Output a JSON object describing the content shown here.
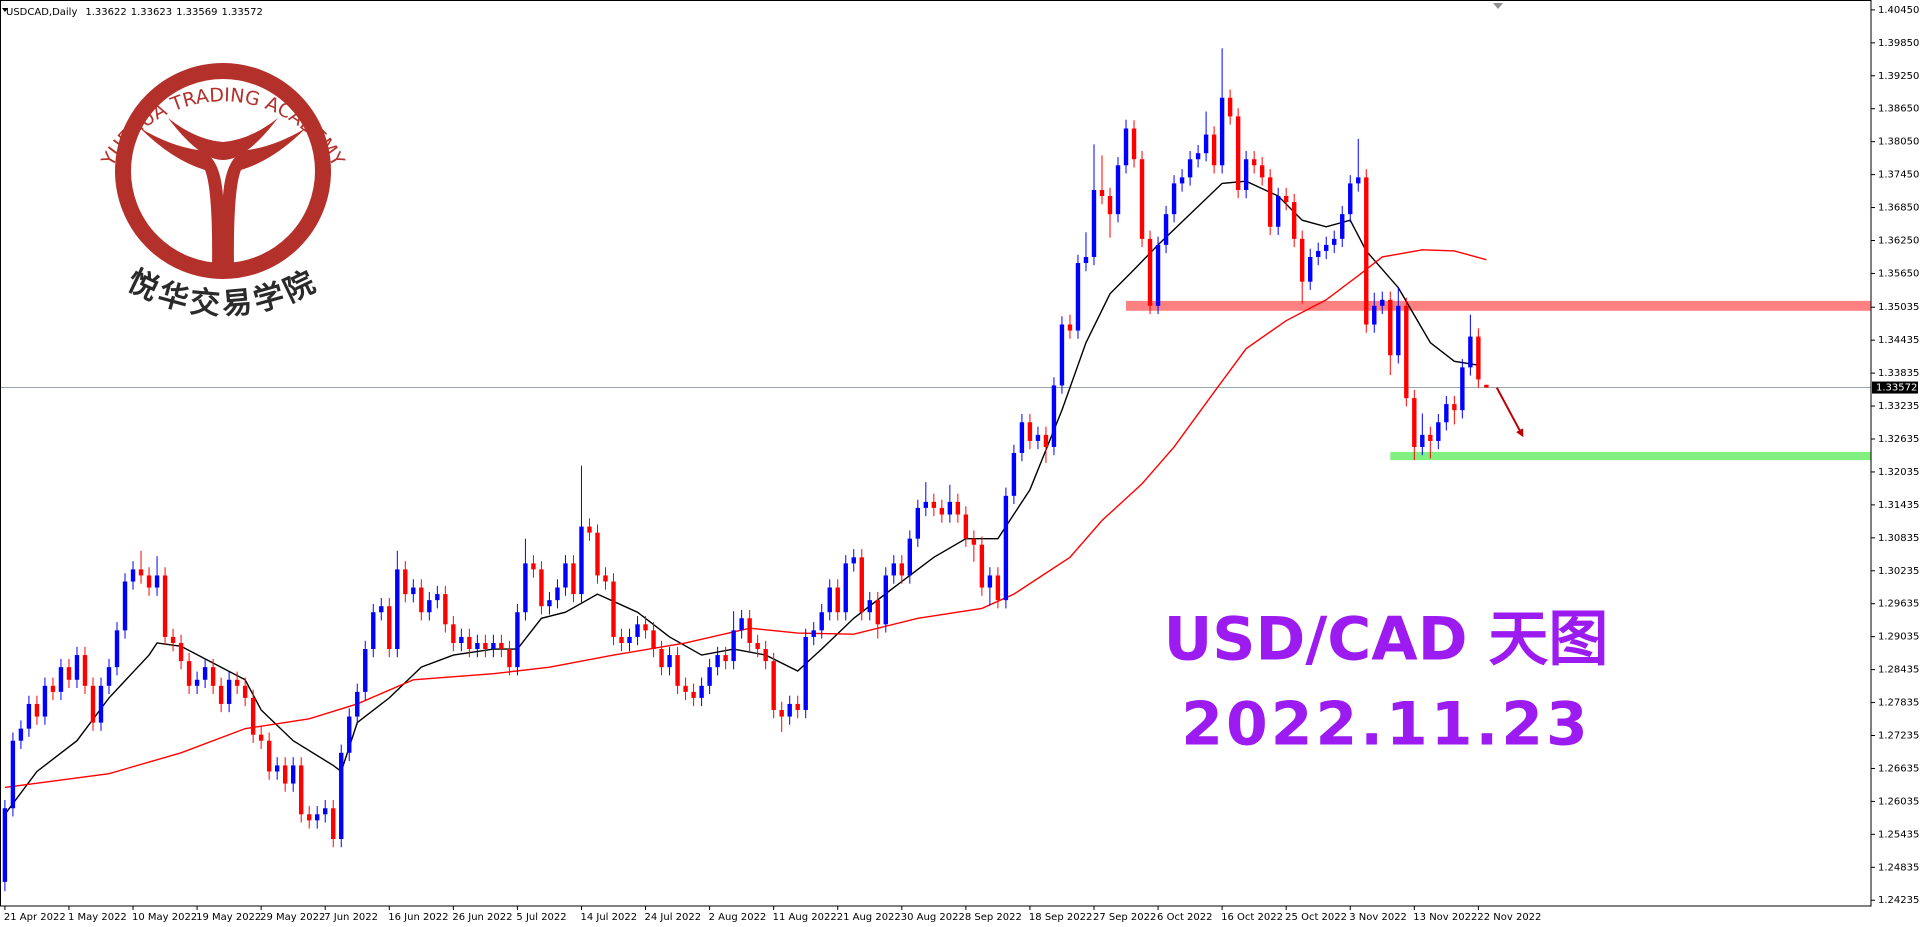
{
  "chart_data": {
    "type": "candlestick",
    "symbol": "USDCAD,Daily",
    "up_color": "#0000ff",
    "down_color": "#ff0000",
    "grid": false,
    "ylim": [
      1.2413,
      1.4063
    ],
    "yticks": [
      {
        "value": 1.4045,
        "label": "1.40450"
      },
      {
        "value": 1.3985,
        "label": "1.39850"
      },
      {
        "value": 1.3925,
        "label": "1.39250"
      },
      {
        "value": 1.3865,
        "label": "1.38650"
      },
      {
        "value": 1.3805,
        "label": "1.38050"
      },
      {
        "value": 1.3745,
        "label": "1.37450"
      },
      {
        "value": 1.3685,
        "label": "1.36850"
      },
      {
        "value": 1.3625,
        "label": "1.36250"
      },
      {
        "value": 1.3565,
        "label": "1.35650"
      },
      1.35035,
      1.34435,
      1.33835,
      1.33235,
      1.32635,
      1.32035,
      1.31435,
      1.30835,
      1.30235,
      1.29635,
      1.29035,
      1.28435,
      1.27835,
      1.27235,
      1.26635,
      1.26035,
      1.25435,
      1.24835,
      1.24235
    ],
    "last_price": 1.33572,
    "categories": [
      "21 Apr 2022",
      null,
      null,
      null,
      null,
      null,
      null,
      null,
      "1 May 2022",
      null,
      null,
      null,
      null,
      null,
      null,
      null,
      "10 May 2022",
      null,
      null,
      null,
      null,
      null,
      null,
      null,
      "19 May 2022",
      null,
      null,
      null,
      null,
      null,
      null,
      null,
      "29 May 2022",
      null,
      null,
      null,
      null,
      null,
      null,
      null,
      "7 Jun 2022",
      null,
      null,
      null,
      null,
      null,
      null,
      null,
      "16 Jun 2022",
      null,
      null,
      null,
      null,
      null,
      null,
      null,
      "26 Jun 2022",
      null,
      null,
      null,
      null,
      null,
      null,
      null,
      "5 Jul 2022",
      null,
      null,
      null,
      null,
      null,
      null,
      null,
      "14 Jul 2022",
      null,
      null,
      null,
      null,
      null,
      null,
      null,
      "24 Jul 2022",
      null,
      null,
      null,
      null,
      null,
      null,
      null,
      "2 Aug 2022",
      null,
      null,
      null,
      null,
      null,
      null,
      null,
      "11 Aug 2022",
      null,
      null,
      null,
      null,
      null,
      null,
      null,
      "21 Aug 2022",
      null,
      null,
      null,
      null,
      null,
      null,
      null,
      "30 Aug 2022",
      null,
      null,
      null,
      null,
      null,
      null,
      null,
      "8 Sep 2022",
      null,
      null,
      null,
      null,
      null,
      null,
      null,
      "18 Sep 2022",
      null,
      null,
      null,
      null,
      null,
      null,
      null,
      "27 Sep 2022",
      null,
      null,
      null,
      null,
      null,
      null,
      null,
      "6 Oct 2022",
      null,
      null,
      null,
      null,
      null,
      null,
      null,
      "16 Oct 2022",
      null,
      null,
      null,
      null,
      null,
      null,
      null,
      "25 Oct 2022",
      null,
      null,
      null,
      null,
      null,
      null,
      null,
      "3 Nov 2022",
      null,
      null,
      null,
      null,
      null,
      null,
      null,
      "13 Nov 2022",
      null,
      null,
      null,
      null,
      null,
      null,
      null,
      "22 Nov 2022",
      null
    ],
    "open": [
      1.2457,
      1.2591,
      1.2714,
      1.2736,
      1.2781,
      1.2758,
      1.2814,
      1.2803,
      1.2848,
      1.2825,
      1.287,
      1.2814,
      1.2747,
      1.2814,
      1.2848,
      1.2915,
      1.3004,
      1.3026,
      1.3015,
      1.2993,
      1.3015,
      1.2903,
      1.2892,
      1.2859,
      1.2814,
      1.2825,
      1.2848,
      1.2814,
      1.2781,
      1.2825,
      1.2814,
      1.2792,
      1.2725,
      1.2714,
      1.2658,
      1.2669,
      1.2636,
      1.2669,
      1.258,
      1.2569,
      1.258,
      1.2591,
      1.2535,
      1.2692,
      1.2758,
      1.2803,
      1.2881,
      1.2948,
      1.2959,
      1.2881,
      1.3026,
      1.2981,
      1.2993,
      1.2948,
      1.297,
      1.2981,
      1.2926,
      1.2892,
      1.2903,
      1.2881,
      1.2892,
      1.2881,
      1.2892,
      1.2881,
      1.2848,
      1.2948,
      1.3037,
      1.3026,
      1.2959,
      1.297,
      1.2993,
      1.3037,
      1.2981,
      1.3104,
      1.3093,
      1.3015,
      1.3004,
      1.2903,
      1.2892,
      1.2903,
      1.2926,
      1.2915,
      1.2881,
      1.2848,
      1.287,
      1.2814,
      1.2803,
      1.2792,
      1.2814,
      1.2848,
      1.287,
      1.2859,
      1.2915,
      1.2937,
      1.2892,
      1.2881,
      1.2859,
      1.277,
      1.2758,
      1.2781,
      1.277,
      1.2903,
      1.2915,
      1.2948,
      1.2993,
      1.2948,
      1.3037,
      1.3048,
      1.2948,
      1.297,
      1.2926,
      1.3015,
      1.3037,
      1.3015,
      1.3082,
      1.3138,
      1.3149,
      1.3138,
      1.3126,
      1.3149,
      1.3126,
      1.3082,
      1.3071,
      1.2993,
      1.3015,
      1.297,
      1.316,
      1.3238,
      1.3294,
      1.326,
      1.3271,
      1.3249,
      1.3361,
      1.3472,
      1.3461,
      1.3584,
      1.3595,
      1.3717,
      1.3706,
      1.3673,
      1.3762,
      1.3829,
      1.3773,
      1.3628,
      1.3506,
      1.3617,
      1.3673,
      1.3729,
      1.374,
      1.3773,
      1.3784,
      1.3818,
      1.3762,
      1.3885,
      1.3851,
      1.3717,
      1.3773,
      1.3762,
      1.374,
      1.365,
      1.3706,
      1.3695,
      1.3628,
      1.355,
      1.3595,
      1.3606,
      1.3617,
      1.3628,
      1.3673,
      1.3729,
      1.374,
      1.3472,
      1.3506,
      1.3517,
      1.3416,
      1.3506,
      1.3338,
      1.3249,
      1.3271,
      1.326,
      1.3294,
      1.3327,
      1.3316,
      1.3394,
      1.345,
      1.33622
    ],
    "high": [
      1.2606,
      1.2729,
      1.2751,
      1.2796,
      1.2796,
      1.2829,
      1.2829,
      1.2863,
      1.2863,
      1.2885,
      1.2885,
      1.2829,
      1.2829,
      1.2863,
      1.293,
      1.3019,
      1.3041,
      1.306,
      1.303,
      1.305,
      1.303,
      1.2918,
      1.2907,
      1.2874,
      1.284,
      1.2863,
      1.2863,
      1.2829,
      1.284,
      1.284,
      1.2829,
      1.2807,
      1.274,
      1.2729,
      1.2684,
      1.2684,
      1.2684,
      1.2684,
      1.2595,
      1.2595,
      1.2606,
      1.2606,
      1.2707,
      1.2773,
      1.2818,
      1.2896,
      1.2963,
      1.2974,
      1.2974,
      1.306,
      1.3041,
      1.3008,
      1.3008,
      1.2985,
      1.2996,
      1.2996,
      1.2941,
      1.2918,
      1.2918,
      1.2907,
      1.2907,
      1.2907,
      1.2907,
      1.2896,
      1.2963,
      1.3082,
      1.3052,
      1.3041,
      1.2985,
      1.3008,
      1.3052,
      1.3052,
      1.3215,
      1.3119,
      1.3108,
      1.303,
      1.3019,
      1.2918,
      1.2918,
      1.2941,
      1.2941,
      1.293,
      1.2896,
      1.2885,
      1.2885,
      1.2829,
      1.2818,
      1.2829,
      1.2863,
      1.2885,
      1.2885,
      1.295,
      1.2952,
      1.2952,
      1.2907,
      1.2896,
      1.2874,
      1.2785,
      1.2796,
      1.2796,
      1.2918,
      1.293,
      1.2963,
      1.3008,
      1.3008,
      1.3052,
      1.3063,
      1.3063,
      1.2985,
      1.2985,
      1.303,
      1.3052,
      1.3052,
      1.3097,
      1.3153,
      1.3185,
      1.3164,
      1.3153,
      1.318,
      1.3164,
      1.3141,
      1.3097,
      1.3086,
      1.303,
      1.303,
      1.3175,
      1.3253,
      1.3309,
      1.3309,
      1.3286,
      1.3286,
      1.3376,
      1.3487,
      1.349,
      1.3599,
      1.364,
      1.38,
      1.378,
      1.3721,
      1.3777,
      1.3845,
      1.3844,
      1.3788,
      1.3643,
      1.3632,
      1.3688,
      1.3744,
      1.3755,
      1.3788,
      1.3799,
      1.386,
      1.3833,
      1.3975,
      1.39,
      1.3866,
      1.3788,
      1.3788,
      1.3777,
      1.3755,
      1.3721,
      1.3721,
      1.371,
      1.3643,
      1.361,
      1.3621,
      1.3632,
      1.3643,
      1.3688,
      1.3744,
      1.381,
      1.3755,
      1.353,
      1.3532,
      1.3532,
      1.354,
      1.3521,
      1.3353,
      1.331,
      1.3286,
      1.3309,
      1.3342,
      1.3342,
      1.3409,
      1.349,
      1.3465,
      1.33623
    ],
    "low": [
      1.244,
      1.2576,
      1.2699,
      1.2721,
      1.2743,
      1.2743,
      1.2788,
      1.2788,
      1.281,
      1.281,
      1.2799,
      1.2732,
      1.2732,
      1.2799,
      1.2833,
      1.29,
      1.2989,
      1.3,
      1.2978,
      1.2978,
      1.2888,
      1.2877,
      1.2844,
      1.2799,
      1.2799,
      1.281,
      1.2799,
      1.2766,
      1.2766,
      1.2799,
      1.2777,
      1.271,
      1.2699,
      1.2643,
      1.2643,
      1.2621,
      1.2621,
      1.2565,
      1.2554,
      1.2554,
      1.2565,
      1.252,
      1.252,
      1.2677,
      1.2743,
      1.2788,
      1.2866,
      1.2933,
      1.2866,
      1.2866,
      1.2966,
      1.2966,
      1.2933,
      1.2933,
      1.2955,
      1.2911,
      1.2877,
      1.2877,
      1.2866,
      1.2866,
      1.2866,
      1.2866,
      1.2866,
      1.2833,
      1.2833,
      1.2933,
      1.3011,
      1.2944,
      1.2944,
      1.2955,
      1.2978,
      1.2966,
      1.2966,
      1.3078,
      1.3,
      1.2989,
      1.2888,
      1.2877,
      1.2877,
      1.2888,
      1.29,
      1.2866,
      1.2833,
      1.2833,
      1.2799,
      1.2788,
      1.2777,
      1.2777,
      1.2799,
      1.2833,
      1.2844,
      1.2844,
      1.29,
      1.2877,
      1.2866,
      1.2844,
      1.2755,
      1.273,
      1.2743,
      1.2755,
      1.2755,
      1.2888,
      1.29,
      1.2933,
      1.2933,
      1.2933,
      1.3022,
      1.2933,
      1.2933,
      1.29,
      1.2911,
      1.3,
      1.3,
      1.3,
      1.3067,
      1.3123,
      1.3123,
      1.3111,
      1.3111,
      1.3111,
      1.3067,
      1.304,
      1.2978,
      1.296,
      1.2955,
      1.2955,
      1.3145,
      1.3223,
      1.3245,
      1.3245,
      1.322,
      1.3234,
      1.3346,
      1.3446,
      1.3446,
      1.3569,
      1.358,
      1.3691,
      1.363,
      1.3658,
      1.3747,
      1.3758,
      1.3613,
      1.3491,
      1.3491,
      1.3602,
      1.3658,
      1.3714,
      1.3725,
      1.3758,
      1.3769,
      1.3747,
      1.3747,
      1.3836,
      1.3702,
      1.3702,
      1.3747,
      1.3725,
      1.3635,
      1.3635,
      1.368,
      1.3613,
      1.351,
      1.3535,
      1.358,
      1.3591,
      1.3602,
      1.3613,
      1.3658,
      1.3714,
      1.3457,
      1.3457,
      1.3491,
      1.338,
      1.3401,
      1.3323,
      1.3225,
      1.3234,
      1.3228,
      1.3245,
      1.3279,
      1.329,
      1.3301,
      1.3379,
      1.3357,
      1.33569
    ],
    "close": [
      1.2591,
      1.2714,
      1.2736,
      1.2781,
      1.2758,
      1.2814,
      1.2803,
      1.2848,
      1.2825,
      1.287,
      1.2814,
      1.2747,
      1.2814,
      1.2848,
      1.2915,
      1.3004,
      1.3026,
      1.3015,
      1.2993,
      1.3015,
      1.2903,
      1.2892,
      1.2859,
      1.2814,
      1.2825,
      1.2848,
      1.2814,
      1.2781,
      1.2825,
      1.2814,
      1.2792,
      1.2725,
      1.2714,
      1.2658,
      1.2669,
      1.2636,
      1.2669,
      1.258,
      1.2569,
      1.258,
      1.2591,
      1.2535,
      1.2692,
      1.2758,
      1.2803,
      1.2881,
      1.2948,
      1.2959,
      1.2881,
      1.3026,
      1.2981,
      1.2993,
      1.2948,
      1.297,
      1.2981,
      1.2926,
      1.2892,
      1.2903,
      1.2881,
      1.2892,
      1.2881,
      1.2892,
      1.2881,
      1.2848,
      1.2948,
      1.3037,
      1.3026,
      1.2959,
      1.297,
      1.2993,
      1.3037,
      1.2981,
      1.3104,
      1.3093,
      1.3015,
      1.3004,
      1.2903,
      1.2892,
      1.2903,
      1.2926,
      1.2915,
      1.2881,
      1.2848,
      1.287,
      1.2814,
      1.2803,
      1.2792,
      1.2814,
      1.2848,
      1.287,
      1.2859,
      1.2915,
      1.2937,
      1.2892,
      1.2881,
      1.2859,
      1.277,
      1.2758,
      1.2781,
      1.277,
      1.2903,
      1.2915,
      1.2948,
      1.2993,
      1.2948,
      1.3037,
      1.3048,
      1.2948,
      1.297,
      1.2926,
      1.3015,
      1.3037,
      1.3015,
      1.3082,
      1.3138,
      1.3149,
      1.3138,
      1.3126,
      1.3149,
      1.3126,
      1.3082,
      1.3071,
      1.2993,
      1.3015,
      1.297,
      1.316,
      1.3238,
      1.3294,
      1.326,
      1.3271,
      1.3249,
      1.3361,
      1.3472,
      1.3461,
      1.3584,
      1.3595,
      1.3717,
      1.3706,
      1.3673,
      1.3762,
      1.3829,
      1.3773,
      1.3628,
      1.3506,
      1.3617,
      1.3673,
      1.3729,
      1.374,
      1.3773,
      1.3784,
      1.3818,
      1.3762,
      1.3885,
      1.3851,
      1.3717,
      1.3773,
      1.3762,
      1.374,
      1.365,
      1.3706,
      1.3695,
      1.3628,
      1.355,
      1.3595,
      1.3606,
      1.3617,
      1.3628,
      1.3673,
      1.3729,
      1.374,
      1.3472,
      1.3506,
      1.3517,
      1.3416,
      1.3506,
      1.3338,
      1.3249,
      1.3271,
      1.326,
      1.3294,
      1.3327,
      1.3316,
      1.3394,
      1.345,
      1.3372,
      1.33572
    ],
    "moving_averages": [
      {
        "color": "#000000",
        "x": [
          0,
          4,
          9,
          13,
          18,
          19,
          22,
          25,
          30,
          32,
          36,
          41,
          42,
          44,
          48,
          52,
          56,
          61,
          64,
          67,
          70,
          74,
          79,
          83,
          87,
          91,
          95,
          99,
          102,
          106,
          111,
          116,
          120,
          124,
          128,
          132,
          135,
          138,
          141,
          144,
          148,
          152,
          155,
          159,
          162,
          165,
          168,
          170,
          174,
          178,
          181,
          184
        ],
        "values": [
          1.258,
          1.2658,
          1.2714,
          1.2792,
          1.287,
          1.2892,
          1.2886,
          1.2863,
          1.2825,
          1.277,
          1.2714,
          1.2669,
          1.2658,
          1.2747,
          1.2792,
          1.2848,
          1.287,
          1.2881,
          1.2881,
          1.2937,
          1.2948,
          1.2981,
          1.2948,
          1.2903,
          1.287,
          1.2881,
          1.287,
          1.2841,
          1.2881,
          1.2937,
          1.2993,
          1.3048,
          1.3082,
          1.3082,
          1.3171,
          1.3316,
          1.3439,
          1.3528,
          1.3572,
          1.3617,
          1.3673,
          1.3729,
          1.3733,
          1.3706,
          1.3662,
          1.365,
          1.3662,
          1.3606,
          1.3539,
          1.3439,
          1.3405,
          1.3398
        ]
      },
      {
        "color": "#ff0000",
        "x": [
          0,
          13,
          22,
          30,
          38,
          44,
          51,
          61,
          68,
          76,
          85,
          93,
          99,
          106,
          114,
          122,
          126,
          133,
          137,
          142,
          146,
          151,
          155,
          160,
          165,
          169,
          172,
          177,
          181,
          185
        ],
        "values": [
          1.2629,
          1.2654,
          1.2692,
          1.2736,
          1.2754,
          1.2781,
          1.2825,
          1.2836,
          1.2848,
          1.287,
          1.2892,
          1.2919,
          1.291,
          1.2908,
          1.2937,
          1.2955,
          1.2981,
          1.3048,
          1.3115,
          1.3182,
          1.3249,
          1.3349,
          1.3428,
          1.3479,
          1.3517,
          1.3561,
          1.3595,
          1.3608,
          1.3606,
          1.359
        ]
      }
    ],
    "zones": [
      {
        "color": "#ff8080",
        "x_start": 140,
        "ylim": [
          1.3497,
          1.3515
        ]
      },
      {
        "color": "#80f080",
        "x_start": 173,
        "ylim": [
          1.3225,
          1.324
        ]
      }
    ],
    "arrow": {
      "color": "#c00000",
      "x": [
        186.3,
        189.5
      ],
      "y": [
        1.3357,
        1.327
      ]
    },
    "annotations": {
      "title": "USD/CAD 天图",
      "date": "2022.11.23"
    }
  },
  "logo": {
    "ring_text": "YUEHUA TRADING ACADEMY",
    "name": "悦华交易学院"
  }
}
